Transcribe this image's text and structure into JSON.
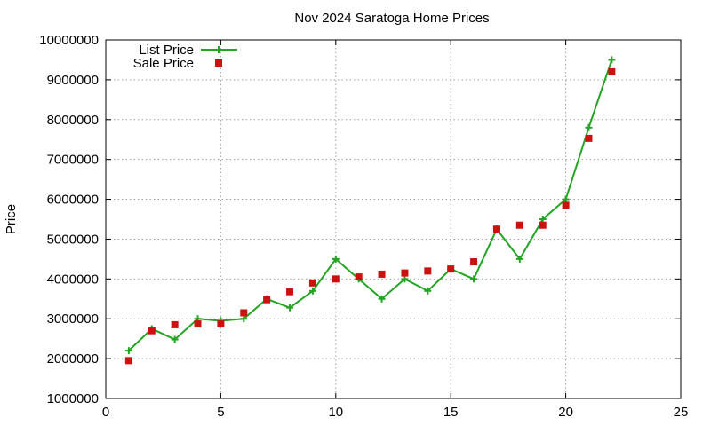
{
  "chart_data": {
    "type": "line",
    "title": "Nov 2024 Saratoga Home Prices",
    "xlabel": "",
    "ylabel": "Price",
    "xlim": [
      0,
      25
    ],
    "ylim": [
      1000000,
      10000000
    ],
    "xticks": [
      0,
      5,
      10,
      15,
      20,
      25
    ],
    "yticks": [
      1000000,
      2000000,
      3000000,
      4000000,
      5000000,
      6000000,
      7000000,
      8000000,
      9000000,
      10000000
    ],
    "grid": true,
    "legend_position": "top-left",
    "series": [
      {
        "name": "List Price",
        "style": "line-with-plus-markers",
        "color": "#22a522",
        "points": [
          [
            1,
            2200000
          ],
          [
            2,
            2750000
          ],
          [
            3,
            2480000
          ],
          [
            4,
            3000000
          ],
          [
            5,
            2950000
          ],
          [
            6,
            3000000
          ],
          [
            7,
            3500000
          ],
          [
            8,
            3280000
          ],
          [
            9,
            3700000
          ],
          [
            10,
            4500000
          ],
          [
            11,
            4000000
          ],
          [
            12,
            3500000
          ],
          [
            13,
            4000000
          ],
          [
            14,
            3700000
          ],
          [
            15,
            4250000
          ],
          [
            16,
            4000000
          ],
          [
            17,
            5250000
          ],
          [
            18,
            4500000
          ],
          [
            19,
            5500000
          ],
          [
            20,
            6000000
          ],
          [
            21,
            7800000
          ],
          [
            22,
            9500000
          ]
        ]
      },
      {
        "name": "Sale Price",
        "style": "square-markers",
        "color": "#cc1111",
        "points": [
          [
            1,
            1950000
          ],
          [
            2,
            2700000
          ],
          [
            3,
            2850000
          ],
          [
            4,
            2870000
          ],
          [
            5,
            2870000
          ],
          [
            6,
            3150000
          ],
          [
            7,
            3480000
          ],
          [
            8,
            3680000
          ],
          [
            9,
            3900000
          ],
          [
            10,
            4000000
          ],
          [
            11,
            4050000
          ],
          [
            12,
            4120000
          ],
          [
            13,
            4150000
          ],
          [
            14,
            4200000
          ],
          [
            15,
            4250000
          ],
          [
            16,
            4430000
          ],
          [
            17,
            5250000
          ],
          [
            18,
            5350000
          ],
          [
            19,
            5350000
          ],
          [
            20,
            5850000
          ],
          [
            21,
            7530000
          ],
          [
            22,
            9200000
          ]
        ]
      }
    ]
  }
}
